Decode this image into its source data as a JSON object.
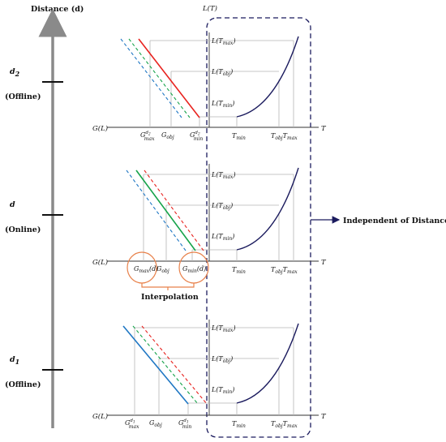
{
  "distance_axis": {
    "title": "Distance (d)",
    "ticks": [
      {
        "symbol": "d",
        "sub": "2",
        "note": "(Offline)"
      },
      {
        "symbol": "d",
        "sub": "",
        "note": "(Online)"
      },
      {
        "symbol": "d",
        "sub": "1",
        "note": "(Offline)"
      }
    ]
  },
  "lt_axis_title": "L(T)",
  "panels": [
    {
      "g_axis": "G(L)",
      "t_axis": "T",
      "g_ticks": [
        {
          "base": "G",
          "sub": "max",
          "sup": "d2"
        },
        {
          "base": "G",
          "sub": "obj",
          "sup": ""
        },
        {
          "base": "G",
          "sub": "min",
          "sup": "d2"
        }
      ],
      "l_labels": [
        "L(T_max)",
        "L(T_obj)",
        "L(T_min)"
      ],
      "t_ticks": [
        "T_min",
        "T_obj",
        "T_max"
      ]
    },
    {
      "g_axis": "G(L)",
      "t_axis": "T",
      "g_ticks": [
        {
          "base": "G",
          "sub": "max",
          "sup": "",
          "arg": "(d)"
        },
        {
          "base": "G",
          "sub": "obj",
          "sup": ""
        },
        {
          "base": "G",
          "sub": "min",
          "sup": "",
          "arg": "(d)"
        }
      ],
      "l_labels": [
        "L(T_max)",
        "L(T_obj)",
        "L(T_min)"
      ],
      "t_ticks": [
        "T_min",
        "T_obj",
        "T_max"
      ]
    },
    {
      "g_axis": "G(L)",
      "t_axis": "T",
      "g_ticks": [
        {
          "base": "G",
          "sub": "max",
          "sup": "d1"
        },
        {
          "base": "G",
          "sub": "obj",
          "sup": ""
        },
        {
          "base": "G",
          "sub": "min",
          "sup": "d1"
        }
      ],
      "l_labels": [
        "L(T_max)",
        "L(T_obj)",
        "L(T_min)"
      ],
      "t_ticks": [
        "T_min",
        "T_obj",
        "T_max"
      ]
    }
  ],
  "interpolation_label": "Interpolation",
  "independent_label": "Independent of Distance",
  "colors": {
    "red": "#e8231f",
    "green": "#16a34a",
    "blue": "#1f77c4",
    "curve": "#1b1b5e",
    "dashed_box": "#1b1b5e",
    "circle": "#e8814a",
    "axis_arrow": "#8a8a8a"
  }
}
